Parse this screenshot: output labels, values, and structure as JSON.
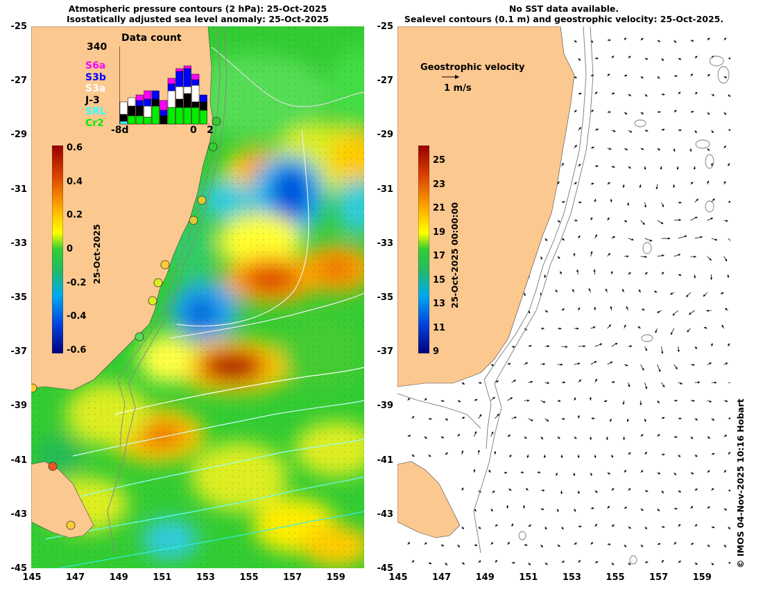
{
  "left_panel": {
    "title_line1": "Atmospheric pressure contours (2 hPa): 25-Oct-2025",
    "title_line2": "Isostatically adjusted sea level anomaly: 25-Oct-2025",
    "colorbar": {
      "label": "25-Oct-2025",
      "ticks": [
        "0.6",
        "0.4",
        "0.2",
        "0",
        "-0.2",
        "-0.4",
        "-0.6"
      ],
      "range": [
        -0.6,
        0.6
      ]
    },
    "data_count": {
      "title": "Data count",
      "max_label": "340",
      "x_left": "-8d",
      "x_mid": "0",
      "x_right": "2",
      "satellites": [
        {
          "name": "S6a",
          "color": "#ff00ff"
        },
        {
          "name": "S3b",
          "color": "#0000ff"
        },
        {
          "name": "S3a",
          "color": "#ffffff"
        },
        {
          "name": "J-3",
          "color": "#000000"
        },
        {
          "name": "SRL",
          "color": "#33ffff"
        },
        {
          "name": "Cr2",
          "color": "#00ee00"
        }
      ]
    }
  },
  "right_panel": {
    "title_line1": "No SST data available.",
    "title_line2": "Sealevel contours (0.1 m) and geostrophic velocity: 25-Oct-2025.",
    "velocity_legend": {
      "label": "Geostrophic velocity",
      "scale": "1 m/s"
    },
    "colorbar": {
      "label": "25-Oct-2025 00:00:00",
      "ticks": [
        "25",
        "23",
        "21",
        "19",
        "17",
        "15",
        "13",
        "11",
        "9"
      ],
      "range": [
        9,
        26
      ]
    }
  },
  "axes": {
    "lat_ticks": [
      "-25",
      "-27",
      "-29",
      "-31",
      "-33",
      "-35",
      "-37",
      "-39",
      "-41",
      "-43",
      "-45"
    ],
    "lon_ticks": [
      "145",
      "147",
      "149",
      "151",
      "153",
      "155",
      "157",
      "159"
    ]
  },
  "credit": "© IMOS 04-Nov-2025 10:16 Hobart",
  "colors": {
    "land": "#fbc890",
    "ssla_ramp": [
      "#00007a",
      "#0044dd",
      "#00aaee",
      "#22bb66",
      "#33cc33",
      "#ffff00",
      "#ffaa00",
      "#dd4400",
      "#990000"
    ],
    "sst_ramp": [
      "#00007a",
      "#0044dd",
      "#00aaee",
      "#22bb66",
      "#33cc33",
      "#ffff00",
      "#ffaa00",
      "#dd4400",
      "#990000"
    ]
  }
}
